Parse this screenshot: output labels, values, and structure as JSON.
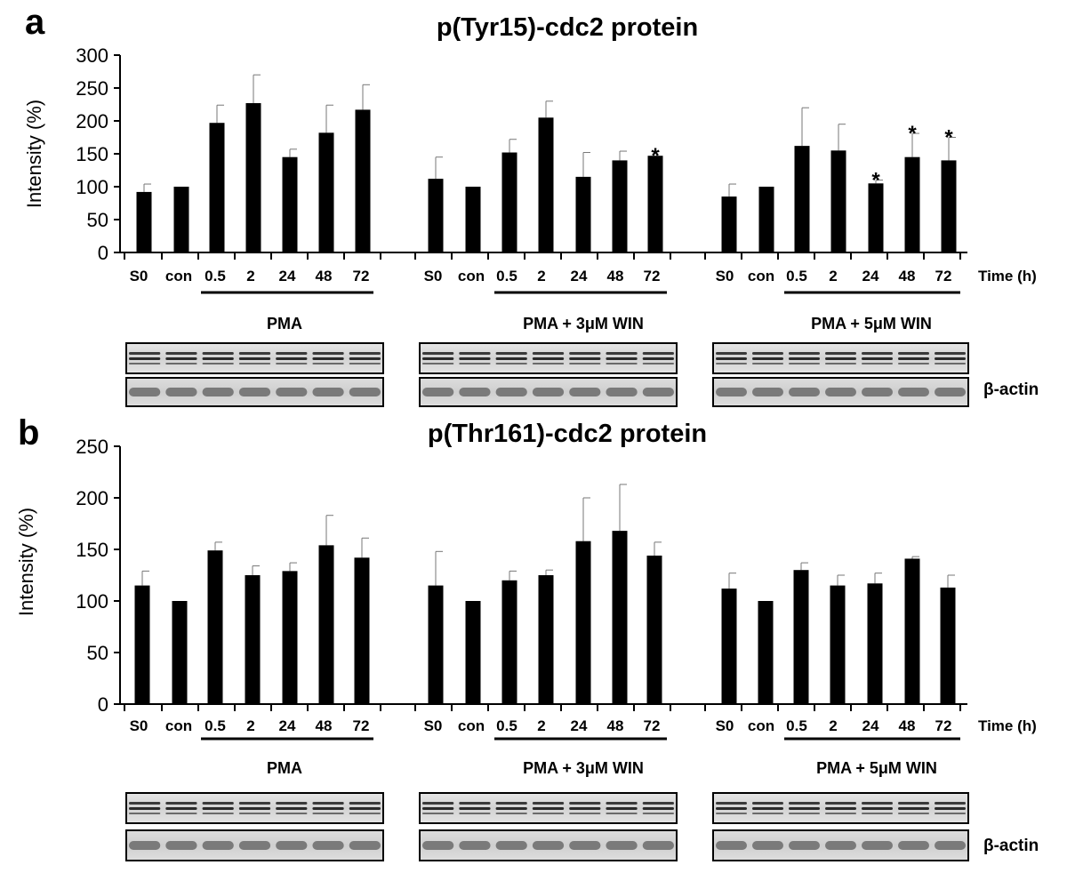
{
  "chart_data": [
    {
      "type": "bar",
      "panel_label": "a",
      "title": "p(Tyr15)-cdc2 protein",
      "ylabel": "Intensity (%)",
      "xlabel": "Time (h)",
      "ylim": [
        0,
        300
      ],
      "yticks": [
        "0",
        "50",
        "100",
        "150",
        "200",
        "250",
        "300"
      ],
      "grid": false,
      "legend": "none",
      "groups": [
        {
          "name": "PMA",
          "categories": [
            "S0",
            "con",
            "0.5",
            "2",
            "24",
            "48",
            "72"
          ],
          "values": [
            92,
            100,
            197,
            227,
            145,
            182,
            217
          ],
          "error_upper": [
            104,
            100,
            224,
            270,
            157,
            224,
            255
          ],
          "significance": [
            "",
            "",
            "",
            "",
            "",
            "",
            ""
          ],
          "blot_label": "",
          "underline_from": "0.5",
          "underline_to": "72"
        },
        {
          "name": "PMA + 3μM WIN",
          "categories": [
            "S0",
            "con",
            "0.5",
            "2",
            "24",
            "48",
            "72"
          ],
          "values": [
            112,
            100,
            152,
            205,
            115,
            140,
            147
          ],
          "error_upper": [
            145,
            100,
            172,
            230,
            152,
            154,
            147
          ],
          "significance": [
            "",
            "",
            "",
            "",
            "",
            "",
            "*"
          ],
          "blot_label": "",
          "underline_from": "0.5",
          "underline_to": "72"
        },
        {
          "name": "PMA + 5μM WIN",
          "categories": [
            "S0",
            "con",
            "0.5",
            "2",
            "24",
            "48",
            "72"
          ],
          "values": [
            85,
            100,
            162,
            155,
            105,
            145,
            140
          ],
          "error_upper": [
            104,
            100,
            220,
            195,
            110,
            181,
            175
          ],
          "significance": [
            "",
            "",
            "",
            "",
            "*",
            "*",
            "*"
          ],
          "blot_label": "β-actin",
          "underline_from": "0.5",
          "underline_to": "72"
        }
      ]
    },
    {
      "type": "bar",
      "panel_label": "b",
      "title": "p(Thr161)-cdc2 protein",
      "ylabel": "Intensity (%)",
      "xlabel": "Time (h)",
      "ylim": [
        0,
        250
      ],
      "yticks": [
        "0",
        "50",
        "100",
        "150",
        "200",
        "250"
      ],
      "grid": false,
      "legend": "none",
      "groups": [
        {
          "name": "PMA",
          "categories": [
            "S0",
            "con",
            "0.5",
            "2",
            "24",
            "48",
            "72"
          ],
          "values": [
            115,
            100,
            149,
            125,
            129,
            154,
            142
          ],
          "error_upper": [
            129,
            100,
            157,
            134,
            137,
            183,
            161
          ],
          "significance": [
            "",
            "",
            "",
            "",
            "",
            "",
            ""
          ],
          "blot_label": "",
          "underline_from": "0.5",
          "underline_to": "72"
        },
        {
          "name": "PMA + 3μM WIN",
          "categories": [
            "S0",
            "con",
            "0.5",
            "2",
            "24",
            "48",
            "72"
          ],
          "values": [
            115,
            100,
            120,
            125,
            158,
            168,
            144
          ],
          "error_upper": [
            148,
            100,
            129,
            130,
            200,
            213,
            157
          ],
          "significance": [
            "",
            "",
            "",
            "",
            "",
            "",
            ""
          ],
          "blot_label": "",
          "underline_from": "0.5",
          "underline_to": "72"
        },
        {
          "name": "PMA + 5μM WIN",
          "categories": [
            "S0",
            "con",
            "0.5",
            "2",
            "24",
            "48",
            "72"
          ],
          "values": [
            112,
            100,
            130,
            115,
            117,
            141,
            113
          ],
          "error_upper": [
            127,
            100,
            137,
            125,
            127,
            143,
            125
          ],
          "significance": [
            "",
            "",
            "",
            "",
            "",
            "",
            ""
          ],
          "blot_label": "β-actin",
          "underline_from": "0.5",
          "underline_to": "72"
        }
      ]
    }
  ]
}
